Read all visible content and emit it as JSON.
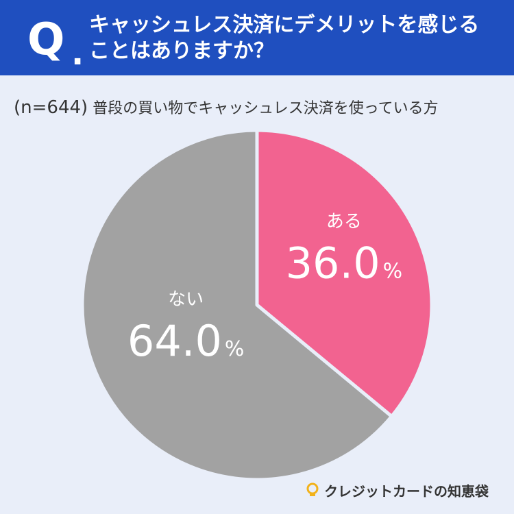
{
  "header": {
    "q_letter": "Q",
    "q_dot": ".",
    "title_line1": "キャッシュレス決済にデメリットを感じる",
    "title_line2": "ことはありますか？"
  },
  "subtitle": {
    "n_label": "(n=644)",
    "text": "普段の買い物でキャッシュレス決済を使っている方"
  },
  "brand": {
    "name": "クレジットカードの知恵袋",
    "icon": "lightbulb-icon"
  },
  "colors": {
    "header_bg": "#1f4fbf",
    "background": "#e9eef9",
    "slice_aru": "#f26390",
    "slice_nai": "#a2a2a2",
    "label_text": "#ffffff",
    "brand_icon": "#f2b21b"
  },
  "chart_data": {
    "type": "pie",
    "unit": "%",
    "slices": [
      {
        "label": "ある",
        "value": 36.0,
        "display": "36.0",
        "color": "#f26390"
      },
      {
        "label": "ない",
        "value": 64.0,
        "display": "64.0",
        "color": "#a2a2a2"
      }
    ],
    "start": "12 o'clock",
    "direction": "clockwise"
  }
}
